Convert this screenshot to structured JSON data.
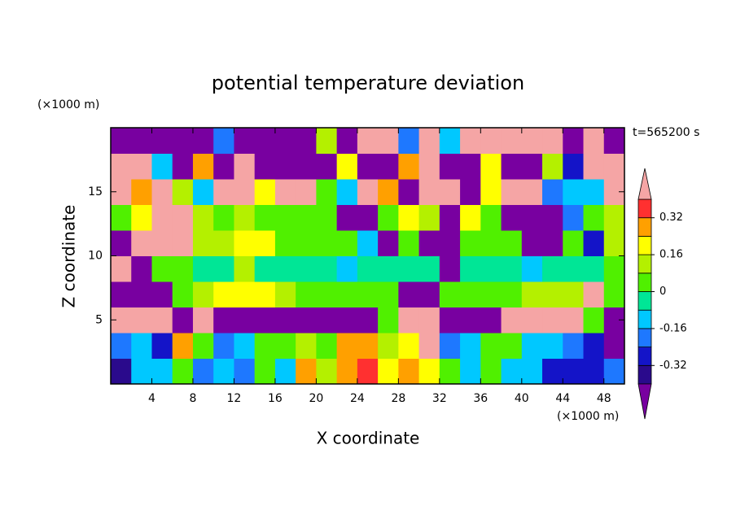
{
  "chart_data": {
    "type": "contour",
    "title": "potential temperature deviation",
    "xlabel": "X coordinate",
    "ylabel": "Z coordinate",
    "x_unit_label": "(×1000 m)",
    "y_unit_label": "(×1000 m)",
    "annotation": "t=565200 s",
    "xlim": [
      0,
      50
    ],
    "ylim": [
      0,
      20
    ],
    "xticks": [
      4,
      8,
      12,
      16,
      20,
      24,
      28,
      32,
      36,
      40,
      44,
      48
    ],
    "yticks": [
      5,
      10,
      15
    ],
    "levels": [
      -0.4,
      -0.32,
      -0.24,
      -0.16,
      -0.08,
      0,
      0.08,
      0.16,
      0.24,
      0.32,
      0.4
    ],
    "colors": [
      "#7800a0",
      "#2a0a8c",
      "#1414c8",
      "#1e78ff",
      "#00c8ff",
      "#00e696",
      "#50f000",
      "#b4f000",
      "#ffff00",
      "#ffa000",
      "#ff3030",
      "#f5a5a5"
    ],
    "colorbar_ticks": [
      -0.32,
      -0.16,
      0,
      0.16,
      0.32
    ],
    "x": [
      1,
      3,
      5,
      7,
      9,
      11,
      13,
      15,
      17,
      19,
      21,
      23,
      25,
      27,
      29,
      31,
      33,
      35,
      37,
      39,
      41,
      43,
      45,
      47,
      49
    ],
    "y": [
      1,
      3,
      5,
      7,
      9,
      11,
      13,
      15,
      17,
      19
    ],
    "z": [
      [
        -0.35,
        -0.1,
        -0.1,
        0.05,
        -0.2,
        -0.15,
        -0.2,
        0,
        -0.1,
        0.3,
        0.1,
        0.3,
        0.35,
        0.2,
        0.3,
        0.2,
        0.05,
        -0.1,
        0,
        -0.1,
        -0.15,
        -0.3,
        -0.25,
        -0.3,
        -0.2
      ],
      [
        -0.2,
        -0.15,
        -0.25,
        0.3,
        0,
        -0.2,
        -0.1,
        0,
        0.05,
        0.1,
        0,
        0.25,
        0.3,
        0.15,
        0.2,
        0.45,
        -0.2,
        -0.1,
        0,
        0.05,
        -0.1,
        -0.15,
        -0.2,
        -0.3,
        -0.45
      ],
      [
        0.45,
        0.45,
        0.45,
        -0.45,
        0.45,
        -0.45,
        -0.45,
        -0.45,
        -0.45,
        -0.45,
        -0.45,
        -0.45,
        -0.45,
        0.05,
        0.45,
        0.45,
        -0.45,
        -0.45,
        -0.45,
        0.45,
        0.45,
        0.45,
        0.45,
        0.05,
        -0.45
      ],
      [
        -0.45,
        -0.45,
        -0.45,
        0.05,
        0.1,
        0.2,
        0.2,
        0.2,
        0.1,
        0.05,
        0.05,
        0.05,
        0.05,
        0.05,
        -0.45,
        -0.45,
        0.05,
        0.05,
        0.05,
        0.05,
        0.1,
        0.1,
        0.1,
        0.45,
        0.05
      ],
      [
        0.45,
        -0.45,
        0,
        0,
        -0.05,
        -0.05,
        0.1,
        -0.05,
        -0.05,
        -0.05,
        -0.05,
        -0.1,
        -0.05,
        -0.05,
        -0.05,
        -0.05,
        -0.45,
        -0.05,
        -0.05,
        -0.05,
        -0.1,
        -0.05,
        -0.05,
        -0.05,
        0.05
      ],
      [
        -0.45,
        0.45,
        0.45,
        0.45,
        0.1,
        0.1,
        0.2,
        0.2,
        0.05,
        0.05,
        0.05,
        0,
        -0.1,
        -0.45,
        0.05,
        -0.45,
        -0.45,
        0.05,
        0.05,
        0.05,
        -0.45,
        -0.45,
        0.05,
        -0.3,
        0.1
      ],
      [
        0.05,
        0.2,
        0.45,
        0.45,
        0.1,
        0.05,
        0.1,
        0.05,
        0.05,
        0.05,
        0.05,
        -0.45,
        -0.45,
        0.05,
        0.2,
        0.1,
        -0.45,
        0.2,
        0.05,
        -0.45,
        -0.45,
        -0.45,
        -0.2,
        0.05,
        0.1
      ],
      [
        0.45,
        0.3,
        0.45,
        0.1,
        -0.1,
        0.45,
        0.45,
        0.2,
        0.45,
        0.45,
        0,
        -0.1,
        0.45,
        0.3,
        -0.45,
        0.45,
        0.45,
        -0.45,
        0.2,
        0.45,
        0.45,
        -0.2,
        -0.1,
        -0.1,
        0.45
      ],
      [
        0.45,
        0.45,
        -0.1,
        -0.45,
        0.3,
        -0.45,
        0.45,
        -0.45,
        -0.45,
        -0.45,
        -0.45,
        0.2,
        -0.45,
        -0.45,
        0.3,
        0.45,
        -0.45,
        -0.45,
        0.2,
        -0.45,
        -0.45,
        0.1,
        -0.3,
        0.45,
        0.45
      ],
      [
        -0.45,
        -0.45,
        -0.45,
        -0.45,
        -0.45,
        -0.2,
        -0.45,
        -0.45,
        -0.45,
        -0.45,
        0.1,
        -0.45,
        0.45,
        0.45,
        -0.2,
        0.45,
        -0.1,
        0.45,
        0.45,
        0.45,
        0.45,
        0.45,
        -0.45,
        0.45,
        -0.45
      ]
    ]
  }
}
